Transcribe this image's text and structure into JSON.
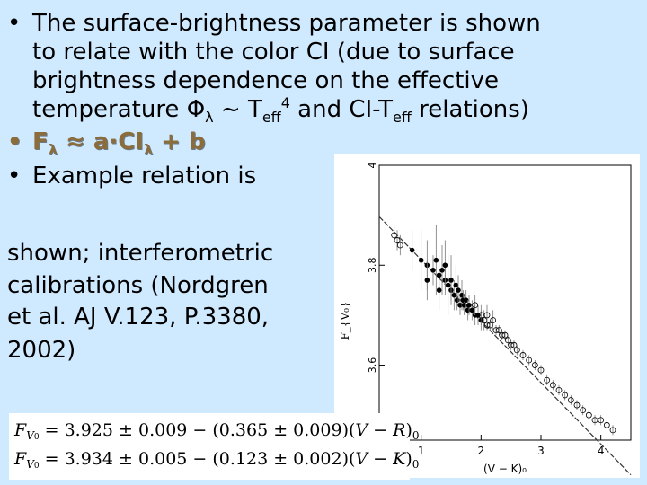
{
  "bullet_char": "•",
  "bullet1": {
    "line1": "The surface-brightness parameter is shown",
    "line2": "to relate with the color CI (due to surface",
    "line3": "brightness dependence on the effective",
    "line4_a": "temperature Φ",
    "line4_sub": "λ",
    "line4_b": " ~ T",
    "line4_sub2": "eff",
    "line4_sup": "4",
    "line4_c": " and CI-T",
    "line4_sub3": "eff",
    "line4_d": " relations)"
  },
  "bullet2": {
    "text_a": "F",
    "sub_a": "λ",
    "text_b": " ≈ a·CI",
    "sub_b": "λ",
    "text_c": " + b"
  },
  "bullet3": {
    "line1": "Example relation is",
    "line2": " shown; interferometric",
    "line3": "calibrations (Nordgren",
    "line4": "et al. AJ V.123, P.3380,",
    "line5": "2002)"
  },
  "formulas": [
    "F_{V₀} = 3.925 ± 0.009 − (0.365 ± 0.009)(V−R)₀",
    "F_{V₀} = 3.934 ± 0.005 − (0.123 ± 0.002)(V−K)₀"
  ],
  "formula_parts": [
    {
      "lhs": "F",
      "lhs_sub": "V",
      "lhs_sub2": "0",
      "rhs": " = 3.925 ± 0.009 − (0.365 ± 0.009)(",
      "mag": "V − R",
      "close": ")",
      "close_sub": "0"
    },
    {
      "lhs": "F",
      "lhs_sub": "V",
      "lhs_sub2": "0",
      "rhs": " = 3.934 ± 0.005 − (0.123 ± 0.002)(",
      "mag": "V − K",
      "close": ")",
      "close_sub": "0"
    }
  ],
  "chart_data": {
    "type": "scatter",
    "title": "",
    "xlabel": "(V − K)₀",
    "ylabel": "F_{V₀}",
    "xlim": [
      0.3,
      4.5
    ],
    "ylim": [
      3.45,
      4.0
    ],
    "x_ticks": [
      "1",
      "2",
      "3",
      "4"
    ],
    "y_ticks": [
      "4",
      "3.8",
      "3.6"
    ],
    "x_tick_values": [
      1,
      2,
      3,
      4
    ],
    "y_tick_values": [
      4.0,
      3.8,
      3.6
    ],
    "fit_line": {
      "intercept": 3.934,
      "slope": -0.123
    },
    "series": [
      {
        "marker": "filled",
        "points": [
          [
            0.85,
            3.83
          ],
          [
            1.0,
            3.81
          ],
          [
            1.1,
            3.8
          ],
          [
            1.2,
            3.79
          ],
          [
            1.25,
            3.81
          ],
          [
            1.3,
            3.78
          ],
          [
            1.35,
            3.79
          ],
          [
            1.4,
            3.77
          ],
          [
            1.45,
            3.76
          ],
          [
            1.5,
            3.75
          ],
          [
            1.5,
            3.77
          ],
          [
            1.55,
            3.74
          ],
          [
            1.58,
            3.76
          ],
          [
            1.6,
            3.73
          ],
          [
            1.62,
            3.75
          ],
          [
            1.65,
            3.72
          ],
          [
            1.68,
            3.74
          ],
          [
            1.7,
            3.73
          ],
          [
            1.72,
            3.72
          ],
          [
            1.75,
            3.73
          ],
          [
            1.78,
            3.71
          ],
          [
            1.8,
            3.72
          ],
          [
            1.85,
            3.71
          ],
          [
            1.9,
            3.7
          ],
          [
            1.95,
            3.7
          ],
          [
            2.0,
            3.69
          ],
          [
            1.3,
            3.75
          ],
          [
            1.4,
            3.8
          ],
          [
            1.1,
            3.77
          ]
        ],
        "err": [
          0.04,
          0.06,
          0.05,
          0.03,
          0.07,
          0.04,
          0.05,
          0.03,
          0.06,
          0.02,
          0.05,
          0.03,
          0.04,
          0.02,
          0.03,
          0.02,
          0.03,
          0.02,
          0.02,
          0.02,
          0.02,
          0.02,
          0.02,
          0.02,
          0.02,
          0.02,
          0.04,
          0.05,
          0.04
        ]
      },
      {
        "marker": "open",
        "points": [
          [
            0.55,
            3.86
          ],
          [
            0.6,
            3.85
          ],
          [
            0.65,
            3.84
          ],
          [
            1.9,
            3.72
          ],
          [
            2.0,
            3.7
          ],
          [
            2.05,
            3.69
          ],
          [
            2.1,
            3.68
          ],
          [
            2.1,
            3.7
          ],
          [
            2.15,
            3.68
          ],
          [
            2.2,
            3.69
          ],
          [
            2.25,
            3.67
          ],
          [
            2.3,
            3.67
          ],
          [
            2.35,
            3.66
          ],
          [
            2.4,
            3.66
          ],
          [
            2.45,
            3.65
          ],
          [
            2.5,
            3.64
          ],
          [
            2.55,
            3.64
          ],
          [
            2.6,
            3.63
          ],
          [
            2.7,
            3.62
          ],
          [
            2.8,
            3.61
          ],
          [
            2.9,
            3.6
          ],
          [
            3.0,
            3.59
          ],
          [
            3.1,
            3.57
          ],
          [
            3.2,
            3.56
          ],
          [
            3.3,
            3.55
          ],
          [
            3.4,
            3.54
          ],
          [
            3.5,
            3.53
          ],
          [
            3.6,
            3.52
          ],
          [
            3.7,
            3.51
          ],
          [
            3.8,
            3.5
          ],
          [
            3.9,
            3.49
          ],
          [
            4.0,
            3.49
          ],
          [
            4.1,
            3.48
          ],
          [
            4.2,
            3.47
          ]
        ],
        "err": [
          0.02,
          0.02,
          0.02,
          0.02,
          0.02,
          0.02,
          0.01,
          0.02,
          0.01,
          0.02,
          0.01,
          0.01,
          0.01,
          0.01,
          0.01,
          0.01,
          0.01,
          0.01,
          0.01,
          0.01,
          0.01,
          0.01,
          0.01,
          0.01,
          0.01,
          0.01,
          0.01,
          0.01,
          0.01,
          0.01,
          0.01,
          0.01,
          0.01,
          0.01
        ]
      }
    ]
  }
}
